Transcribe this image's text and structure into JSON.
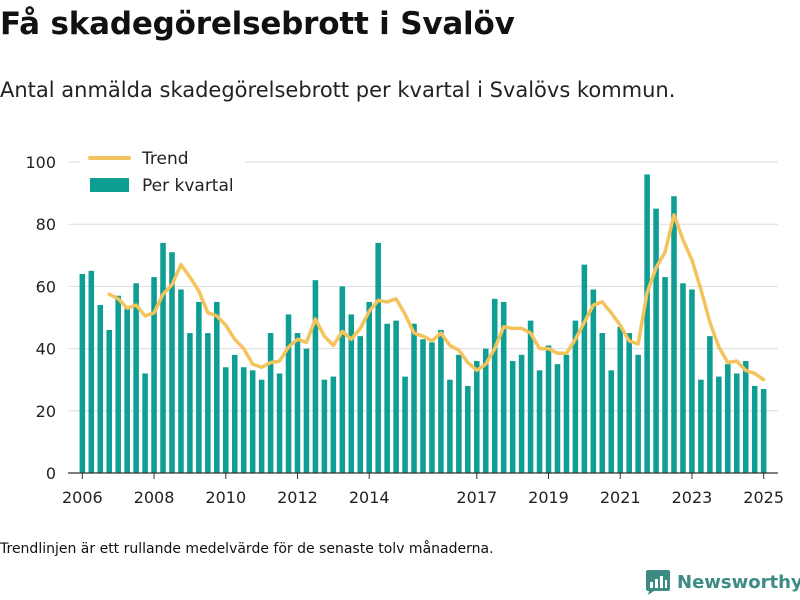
{
  "header": {
    "title": "Få skadegörelsebrott i Svalöv",
    "subtitle": "Antal anmälda skadegörelsebrott per kvartal i Svalövs kommun."
  },
  "footer": {
    "note": "Trendlinjen är ett rullande medelvärde för de senaste tolv månaderna.",
    "brand": "Newsworthy"
  },
  "colors": {
    "bars": "#0e9e94",
    "trend": "#f5c35c",
    "grid": "#dddddd",
    "brand": "#3c8c84"
  },
  "chart_data": {
    "type": "bar",
    "title": "Få skadegörelsebrott i Svalöv",
    "subtitle": "Antal anmälda skadegörelsebrott per kvartal i Svalövs kommun.",
    "xlabel": "",
    "ylabel": "",
    "ylim": [
      0,
      100
    ],
    "yticks": [
      0,
      20,
      40,
      60,
      80,
      100
    ],
    "xticks": [
      {
        "label": "2006",
        "x": 2006.0
      },
      {
        "label": "2008",
        "x": 2008.0
      },
      {
        "label": "2010",
        "x": 2010.0
      },
      {
        "label": "2012",
        "x": 2012.0
      },
      {
        "label": "2014",
        "x": 2014.0
      },
      {
        "label": "2017",
        "x": 2017.0
      },
      {
        "label": "2019",
        "x": 2019.0
      },
      {
        "label": "2021",
        "x": 2021.0
      },
      {
        "label": "2023",
        "x": 2023.0
      },
      {
        "label": "2025",
        "x": 2025.0
      }
    ],
    "x_start": 2006.0,
    "x_step": 0.25,
    "grid": true,
    "legend_position": "top-left",
    "series": [
      {
        "name": "Per kvartal",
        "type": "bar",
        "values": [
          64,
          65,
          54,
          46,
          57,
          53,
          61,
          32,
          63,
          74,
          71,
          59,
          45,
          55,
          45,
          55,
          34,
          38,
          34,
          33,
          30,
          45,
          32,
          51,
          45,
          40,
          62,
          30,
          31,
          60,
          51,
          44,
          55,
          74,
          48,
          49,
          31,
          48,
          43,
          42,
          46,
          30,
          38,
          28,
          36,
          40,
          56,
          55,
          36,
          38,
          49,
          33,
          41,
          35,
          38,
          49,
          67,
          59,
          45,
          33,
          47,
          45,
          38,
          96,
          85,
          63,
          89,
          61,
          59,
          30,
          44,
          31,
          35,
          32,
          36,
          28,
          27
        ]
      },
      {
        "name": "Trend",
        "type": "line",
        "points": [
          [
            2006.75,
            57.5
          ],
          [
            2007.0,
            56
          ],
          [
            2007.25,
            53
          ],
          [
            2007.5,
            54
          ],
          [
            2007.75,
            50.5
          ],
          [
            2008.0,
            51.5
          ],
          [
            2008.25,
            57.5
          ],
          [
            2008.5,
            60.5
          ],
          [
            2008.75,
            67
          ],
          [
            2009.0,
            63
          ],
          [
            2009.25,
            58.5
          ],
          [
            2009.5,
            51.5
          ],
          [
            2009.75,
            50.5
          ],
          [
            2010.0,
            47.5
          ],
          [
            2010.25,
            43
          ],
          [
            2010.5,
            40
          ],
          [
            2010.75,
            35
          ],
          [
            2011.0,
            34
          ],
          [
            2011.25,
            35.5
          ],
          [
            2011.5,
            36
          ],
          [
            2011.75,
            40.5
          ],
          [
            2012.0,
            43
          ],
          [
            2012.25,
            42
          ],
          [
            2012.5,
            49.5
          ],
          [
            2012.75,
            44
          ],
          [
            2013.0,
            41
          ],
          [
            2013.25,
            45.5
          ],
          [
            2013.5,
            43
          ],
          [
            2013.75,
            46.5
          ],
          [
            2014.0,
            52
          ],
          [
            2014.25,
            55.5
          ],
          [
            2014.5,
            55
          ],
          [
            2014.75,
            56
          ],
          [
            2015.0,
            51
          ],
          [
            2015.25,
            45
          ],
          [
            2015.5,
            44
          ],
          [
            2015.75,
            42.5
          ],
          [
            2016.0,
            45
          ],
          [
            2016.25,
            41
          ],
          [
            2016.5,
            39.5
          ],
          [
            2016.75,
            35.5
          ],
          [
            2017.0,
            33
          ],
          [
            2017.25,
            35
          ],
          [
            2017.5,
            40
          ],
          [
            2017.75,
            47
          ],
          [
            2018.0,
            46.5
          ],
          [
            2018.25,
            46.5
          ],
          [
            2018.5,
            45
          ],
          [
            2018.75,
            40
          ],
          [
            2019.0,
            40
          ],
          [
            2019.25,
            38.5
          ],
          [
            2019.5,
            38.5
          ],
          [
            2019.75,
            43
          ],
          [
            2020.0,
            48.5
          ],
          [
            2020.25,
            54
          ],
          [
            2020.5,
            55
          ],
          [
            2020.75,
            51.5
          ],
          [
            2021.0,
            47.5
          ],
          [
            2021.25,
            42.5
          ],
          [
            2021.5,
            41.5
          ],
          [
            2021.75,
            58
          ],
          [
            2022.0,
            66
          ],
          [
            2022.25,
            71
          ],
          [
            2022.5,
            83
          ],
          [
            2022.75,
            75
          ],
          [
            2023.0,
            68.5
          ],
          [
            2023.25,
            59
          ],
          [
            2023.5,
            48.5
          ],
          [
            2023.75,
            40.5
          ],
          [
            2024.0,
            35.5
          ],
          [
            2024.25,
            36
          ],
          [
            2024.5,
            33
          ],
          [
            2024.75,
            32
          ],
          [
            2025.0,
            30
          ]
        ]
      }
    ]
  }
}
